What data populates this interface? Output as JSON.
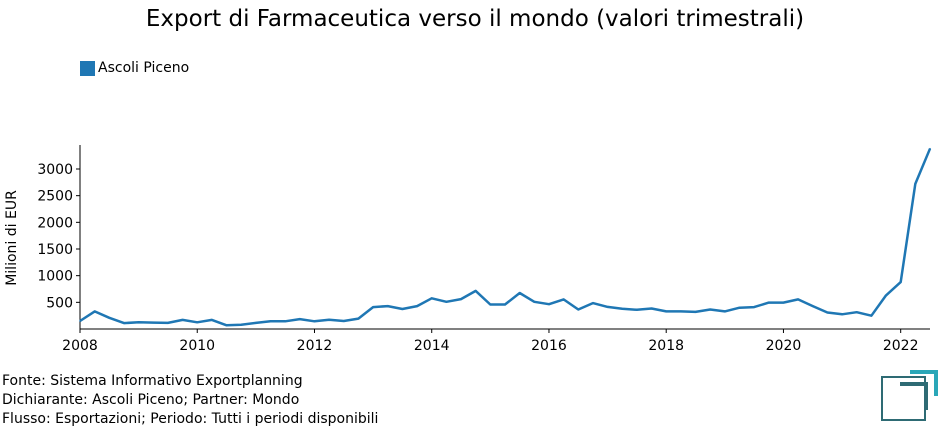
{
  "title": "Export di Farmaceutica verso il mondo (valori trimestrali)",
  "footer": {
    "line1": "Fonte: Sistema Informativo Exportplanning",
    "line2": "Dichiarante: Ascoli Piceno; Partner: Mondo",
    "line3": "Flusso: Esportazioni; Periodo: Tutti i periodi disponibili"
  },
  "colors": {
    "series": "#1f77b4",
    "axis": "#000000",
    "logo": "#2e6b74",
    "logo_accent": "#2aa7b8"
  },
  "chart_data": {
    "type": "line",
    "title": "Export di Farmaceutica verso il mondo (valori trimestrali)",
    "xlabel": "",
    "ylabel": "Milioni di EUR",
    "xlim": [
      2008,
      2022.5
    ],
    "ylim": [
      0,
      3450
    ],
    "x_ticks": [
      2008,
      2010,
      2012,
      2014,
      2016,
      2018,
      2020,
      2022
    ],
    "y_ticks": [
      500,
      1000,
      1500,
      2000,
      2500,
      3000
    ],
    "grid": false,
    "legend_position": "top-left",
    "series": [
      {
        "name": "Ascoli Piceno",
        "color": "#1f77b4",
        "x": [
          2008.0,
          2008.25,
          2008.5,
          2008.75,
          2009.0,
          2009.25,
          2009.5,
          2009.75,
          2010.0,
          2010.25,
          2010.5,
          2010.75,
          2011.0,
          2011.25,
          2011.5,
          2011.75,
          2012.0,
          2012.25,
          2012.5,
          2012.75,
          2013.0,
          2013.25,
          2013.5,
          2013.75,
          2014.0,
          2014.25,
          2014.5,
          2014.75,
          2015.0,
          2015.25,
          2015.5,
          2015.75,
          2016.0,
          2016.25,
          2016.5,
          2016.75,
          2017.0,
          2017.25,
          2017.5,
          2017.75,
          2018.0,
          2018.25,
          2018.5,
          2018.75,
          2019.0,
          2019.25,
          2019.5,
          2019.75,
          2020.0,
          2020.25,
          2020.5,
          2020.75,
          2021.0,
          2021.25,
          2021.5,
          2021.75,
          2022.0,
          2022.25,
          2022.5
        ],
        "y": [
          150,
          330,
          210,
          110,
          125,
          120,
          115,
          170,
          125,
          170,
          70,
          80,
          115,
          145,
          145,
          185,
          145,
          175,
          150,
          195,
          410,
          430,
          375,
          430,
          575,
          510,
          560,
          715,
          460,
          460,
          675,
          510,
          465,
          555,
          365,
          485,
          415,
          380,
          360,
          385,
          330,
          330,
          320,
          365,
          330,
          400,
          410,
          495,
          495,
          555,
          430,
          310,
          275,
          315,
          250,
          630,
          880,
          2720,
          3380
        ]
      }
    ]
  }
}
